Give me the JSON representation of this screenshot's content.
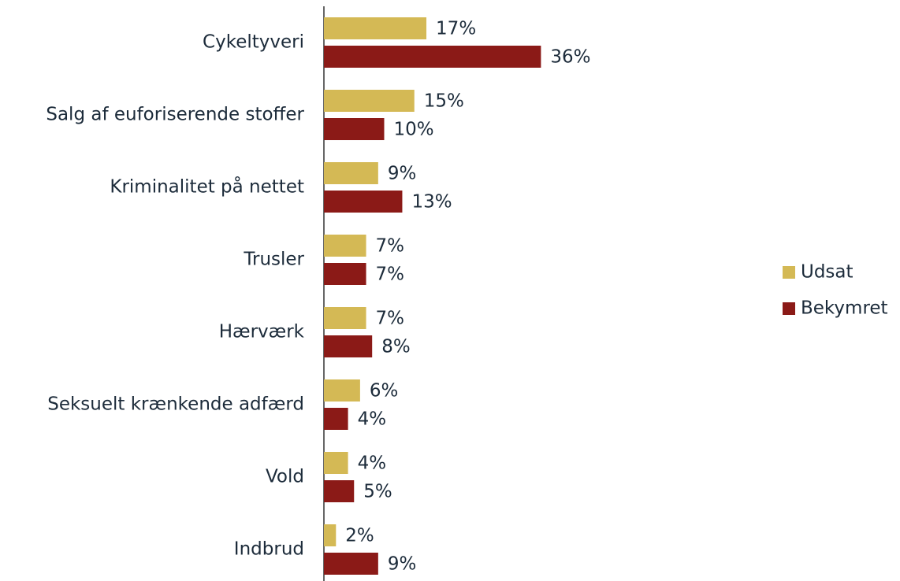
{
  "chart_data": {
    "type": "barh",
    "categories": [
      "Cykeltyveri",
      "Salg af euforiserende stoffer",
      "Kriminalitet på nettet",
      "Trusler",
      "Hærværk",
      "Seksuelt krænkende adfærd",
      "Vold",
      "Indbrud"
    ],
    "series": [
      {
        "name": "Udsat",
        "color": "#d4b955",
        "values": [
          17,
          15,
          9,
          7,
          7,
          6,
          4,
          2
        ],
        "value_labels": [
          "17%",
          "15%",
          "9%",
          "7%",
          "7%",
          "6%",
          "4%",
          "2%"
        ]
      },
      {
        "name": "Bekymret",
        "color": "#8b1a17",
        "values": [
          36,
          10,
          13,
          7,
          8,
          4,
          5,
          9
        ],
        "value_labels": [
          "36%",
          "10%",
          "13%",
          "7%",
          "8%",
          "4%",
          "5%",
          "9%"
        ]
      }
    ],
    "legend": "right"
  }
}
